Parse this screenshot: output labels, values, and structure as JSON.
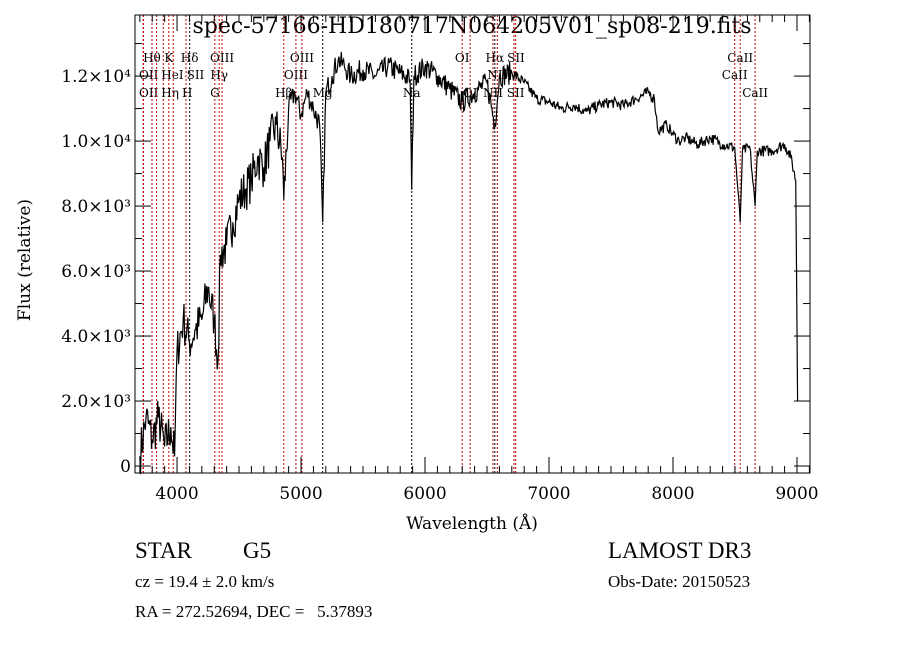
{
  "chart_data": {
    "type": "line",
    "title": "spec-57166-HD180717N064205V01_sp08-219.fits",
    "xlabel": "Wavelength (Å)",
    "ylabel": "Flux (relative)",
    "xlim": [
      3661,
      9105
    ],
    "ylim": [
      -215,
      13880
    ],
    "grid": false,
    "x_ticks": [
      4000,
      5000,
      6000,
      7000,
      8000,
      9000
    ],
    "x_tick_labels": [
      "4000",
      "5000",
      "6000",
      "7000",
      "8000",
      "9000"
    ],
    "y_ticks": [
      0,
      2000,
      4000,
      6000,
      8000,
      10000,
      12000
    ],
    "y_tick_labels": [
      "0",
      "2.0×10³",
      "4.0×10³",
      "6.0×10³",
      "8.0×10³",
      "1.0×10⁴",
      "1.2×10⁴"
    ],
    "series": [
      {
        "name": "flux",
        "color": "#000000",
        "x": [
          3700,
          3750,
          3800,
          3850,
          3900,
          3950,
          3980,
          4000,
          4050,
          4100,
          4150,
          4200,
          4250,
          4300,
          4330,
          4350,
          4400,
          4450,
          4500,
          4550,
          4600,
          4650,
          4700,
          4750,
          4800,
          4850,
          4861,
          4900,
          4950,
          5000,
          5050,
          5100,
          5150,
          5175,
          5200,
          5250,
          5300,
          5350,
          5400,
          5500,
          5600,
          5700,
          5800,
          5880,
          5893,
          5910,
          6000,
          6100,
          6200,
          6300,
          6400,
          6500,
          6563,
          6600,
          6700,
          6800,
          6900,
          7000,
          7100,
          7200,
          7300,
          7400,
          7500,
          7600,
          7700,
          7800,
          7850,
          7880,
          7950,
          8000,
          8050,
          8100,
          8200,
          8300,
          8400,
          8498,
          8542,
          8560,
          8620,
          8662,
          8680,
          8800,
          8900,
          8950,
          8990,
          9005
        ],
        "y": [
          300,
          1500,
          800,
          1500,
          600,
          1200,
          300,
          3500,
          4500,
          3800,
          4200,
          4500,
          5500,
          4500,
          3200,
          6500,
          6800,
          7500,
          8200,
          8500,
          8800,
          9500,
          9200,
          10000,
          10500,
          9500,
          8200,
          11000,
          11500,
          10800,
          11500,
          11000,
          10500,
          7500,
          11500,
          12000,
          12500,
          12300,
          12000,
          12200,
          12000,
          12300,
          12100,
          11900,
          8500,
          12000,
          12300,
          12000,
          11600,
          11200,
          11500,
          11800,
          10500,
          12000,
          12100,
          11800,
          11300,
          11200,
          11000,
          11100,
          10900,
          11100,
          11200,
          11100,
          11300,
          11500,
          11300,
          10300,
          10500,
          10200,
          10000,
          10100,
          9900,
          10100,
          9900,
          9800,
          7500,
          9700,
          9800,
          8000,
          9700,
          9700,
          9900,
          9500,
          8800,
          2000
        ]
      }
    ],
    "line_markers": [
      {
        "label": "Hθ",
        "wavelength": 3798,
        "row": 0,
        "color": "#c00000"
      },
      {
        "label": "K",
        "wavelength": 3934,
        "row": 0,
        "color": "#c00000"
      },
      {
        "label": "Hδ",
        "wavelength": 4102,
        "row": 0,
        "color": "#000000"
      },
      {
        "label": "OIII",
        "wavelength": 4363,
        "row": 0,
        "color": "#c00000"
      },
      {
        "label": "OIII",
        "wavelength": 5007,
        "row": 0,
        "color": "#c00000"
      },
      {
        "label": "OI",
        "wavelength": 6300,
        "row": 0,
        "color": "#c00000"
      },
      {
        "label": "Hα",
        "wavelength": 6563,
        "row": 0,
        "color": "#000000"
      },
      {
        "label": "SII",
        "wavelength": 6717,
        "row": 0,
        "color": "#c00000"
      },
      {
        "label": "CaII",
        "wavelength": 8542,
        "row": 0,
        "color": "#c00000"
      },
      {
        "label": "OII",
        "wavelength": 3727,
        "row": 1,
        "color": "#c00000"
      },
      {
        "label": "HeI",
        "wavelength": 3889,
        "row": 1,
        "color": "#c00000"
      },
      {
        "label": "SII",
        "wavelength": 4072,
        "row": 1,
        "color": "#c00000"
      },
      {
        "label": "Hγ",
        "wavelength": 4340,
        "row": 1,
        "color": "#c00000"
      },
      {
        "label": "OIII",
        "wavelength": 4959,
        "row": 1,
        "color": "#c00000"
      },
      {
        "label": "NII",
        "wavelength": 6583,
        "row": 1,
        "color": "#c00000"
      },
      {
        "label": "CaII",
        "wavelength": 8498,
        "row": 1,
        "color": "#c00000"
      },
      {
        "label": "OII",
        "wavelength": 3729,
        "row": 2,
        "color": "#c00000"
      },
      {
        "label": "Hη",
        "wavelength": 3835,
        "row": 2,
        "color": "#c00000"
      },
      {
        "label": "H",
        "wavelength": 3969,
        "row": 2,
        "color": "#c00000"
      },
      {
        "label": "G",
        "wavelength": 4305,
        "row": 2,
        "color": "#c00000"
      },
      {
        "label": "Hβ",
        "wavelength": 4861,
        "row": 2,
        "color": "#c00000"
      },
      {
        "label": "Mg",
        "wavelength": 5175,
        "row": 2,
        "color": "#000000"
      },
      {
        "label": "Na",
        "wavelength": 5893,
        "row": 2,
        "color": "#000000"
      },
      {
        "label": "OI",
        "wavelength": 6364,
        "row": 2,
        "color": "#c00000"
      },
      {
        "label": "NII",
        "wavelength": 6548,
        "row": 2,
        "color": "#c00000"
      },
      {
        "label": "SII",
        "wavelength": 6731,
        "row": 2,
        "color": "#c00000"
      },
      {
        "label": "CaII",
        "wavelength": 8662,
        "row": 2,
        "color": "#c00000"
      }
    ]
  },
  "info": {
    "object_class": "STAR",
    "subclass": "G5",
    "survey": "LAMOST DR3",
    "cz": "cz = 19.4 ± 2.0 km/s",
    "obs_date": "Obs-Date: 20150523",
    "coords": "RA = 272.52694, DEC =   5.37893"
  }
}
